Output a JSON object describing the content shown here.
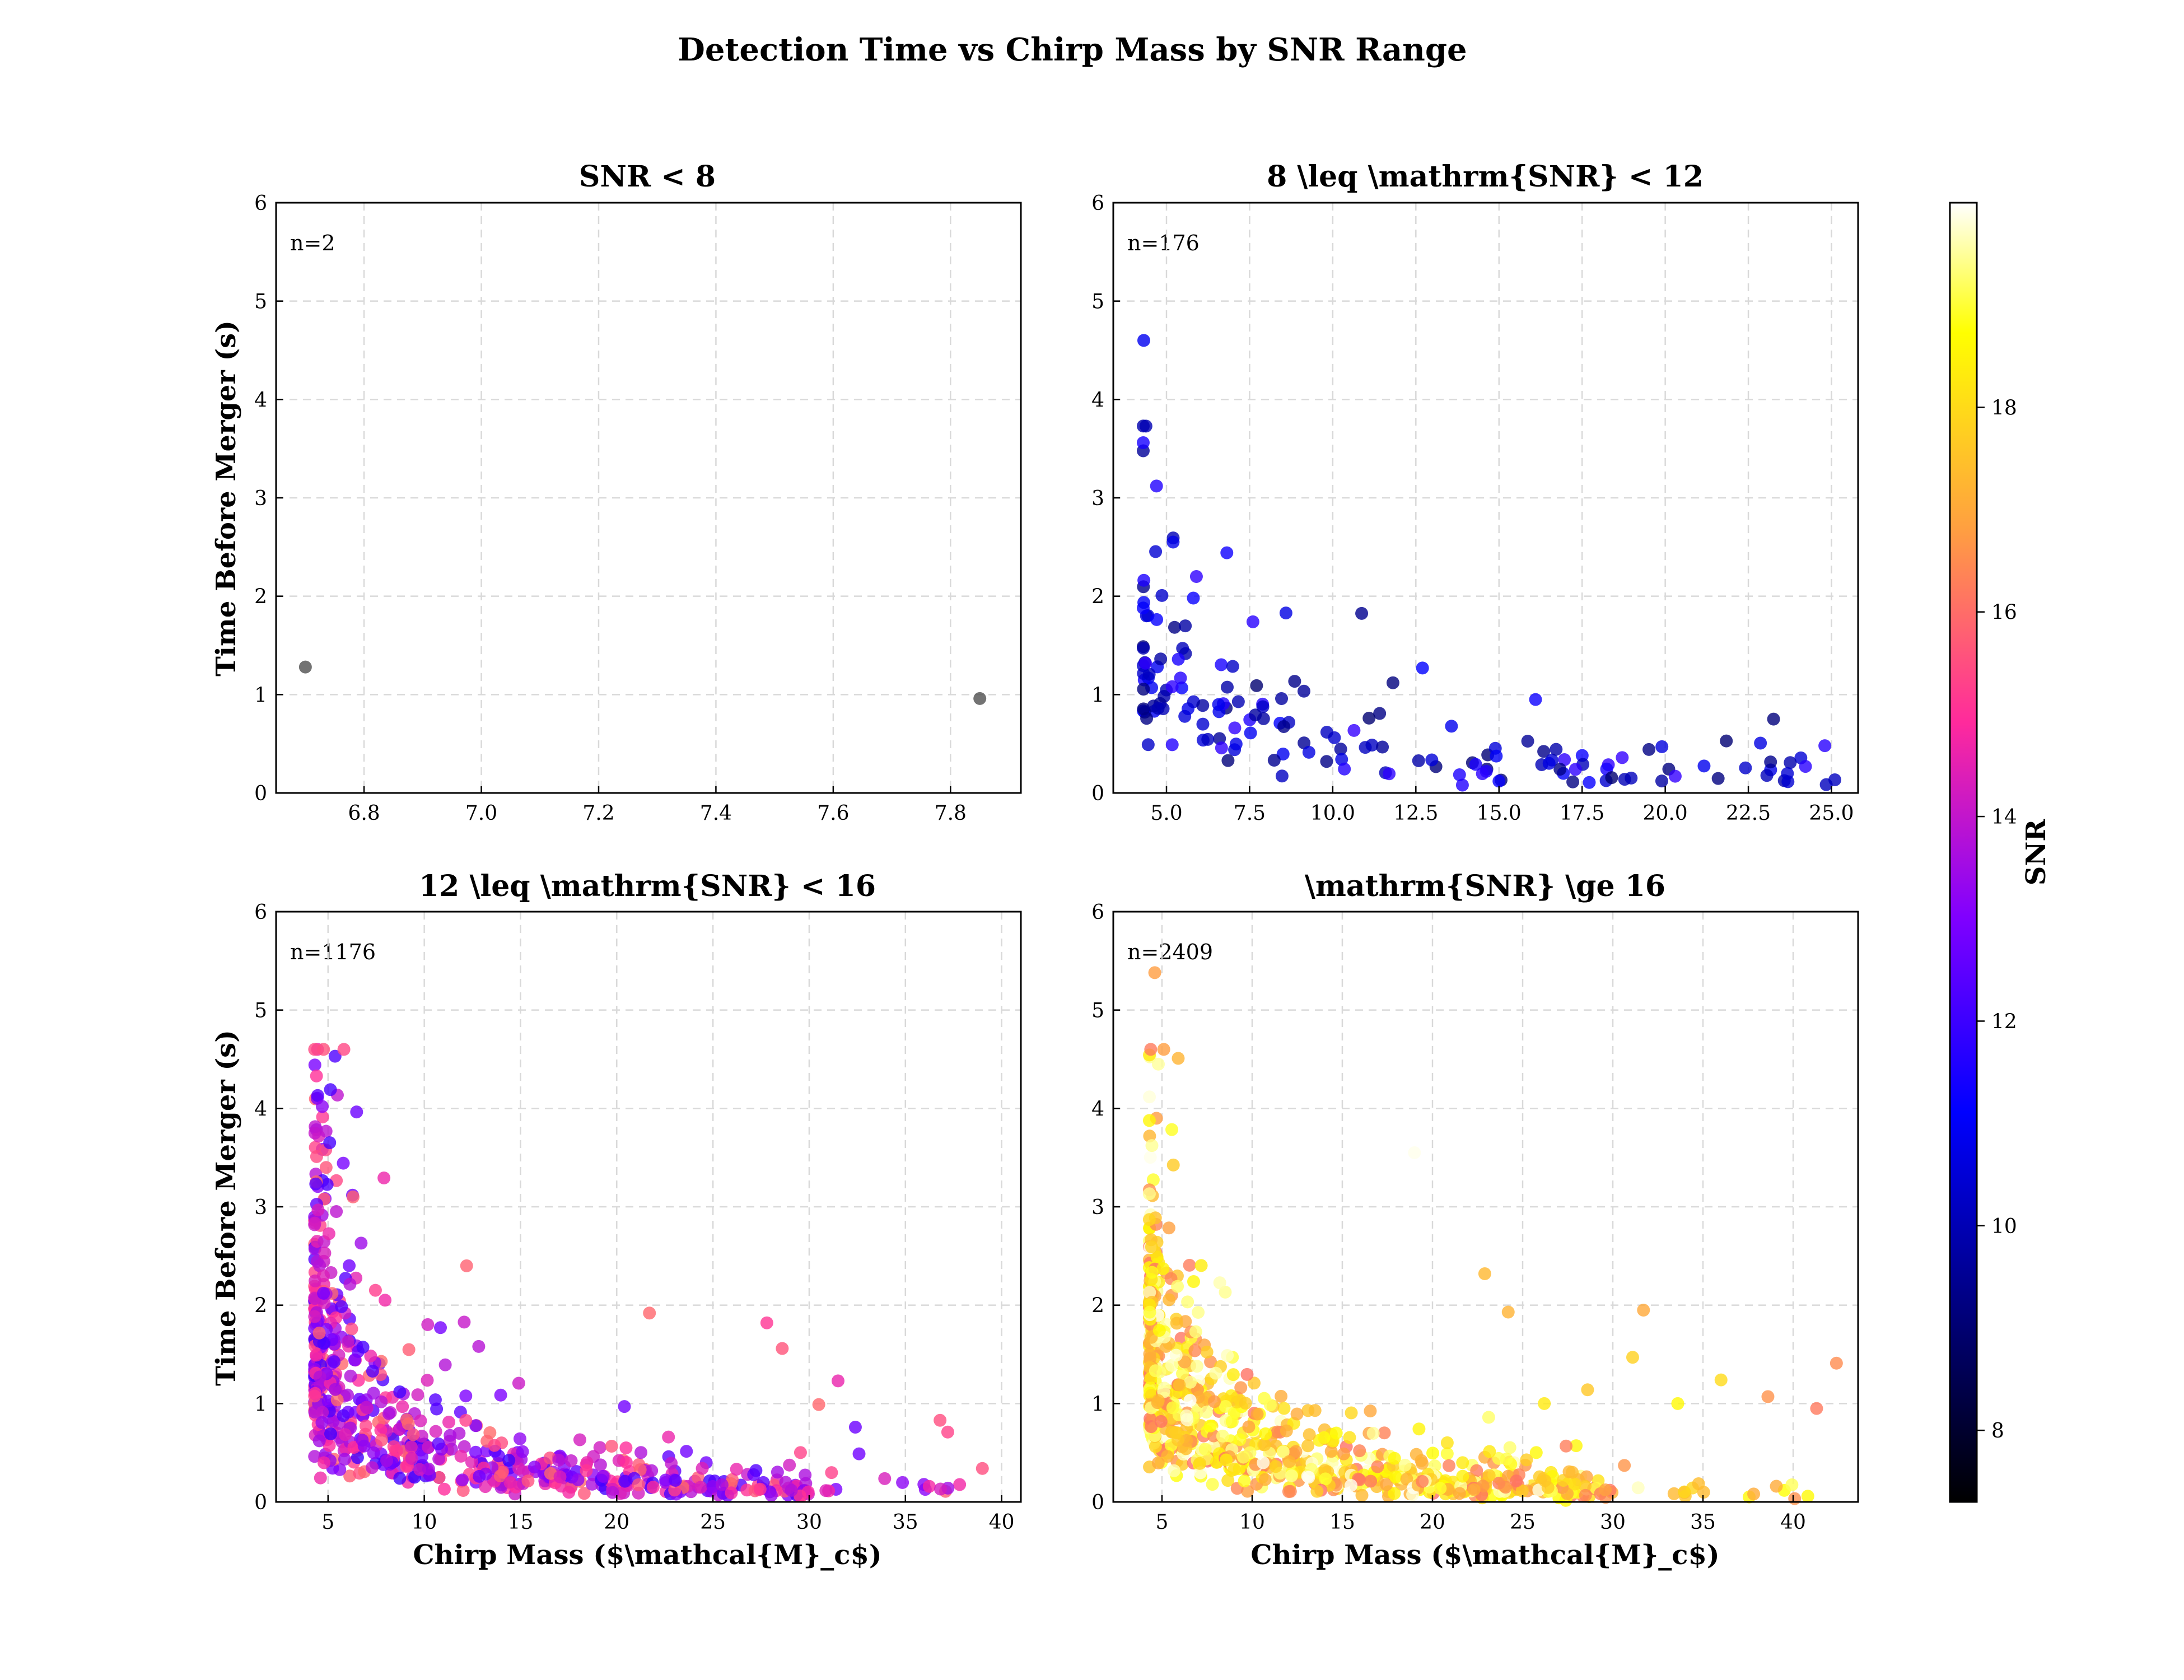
{
  "chart_data": {
    "type": "scatter",
    "title": "Detection Time vs Chirp Mass by SNR Range",
    "colorbar": {
      "label": "SNR",
      "range": [
        7.3,
        20.0
      ],
      "ticks": [
        8,
        10,
        12,
        14,
        16,
        18
      ]
    },
    "panels": [
      {
        "title": "SNR < 8",
        "annotation": "n=2",
        "ylabel": "Time Before Merger (s)",
        "xlabel": "",
        "xlim": [
          6.65,
          7.92
        ],
        "ylim": [
          0,
          6
        ],
        "xticks": [
          6.8,
          7.0,
          7.2,
          7.4,
          7.6,
          7.8
        ],
        "xtick_labels": [
          "6.8",
          "7.0",
          "7.2",
          "7.4",
          "7.6",
          "7.8"
        ],
        "yticks": [
          0,
          1,
          2,
          3,
          4,
          5,
          6
        ],
        "n": 2,
        "snr_range": [
          7.4,
          7.9
        ],
        "points": [
          {
            "x": 6.7,
            "y": 1.28,
            "snr": 7.6
          },
          {
            "x": 7.85,
            "y": 0.96,
            "snr": 7.7
          }
        ]
      },
      {
        "title": "8 \\leq \\mathrm{SNR} < 12",
        "annotation": "n=176",
        "ylabel": "",
        "xlabel": "",
        "xlim": [
          3.4,
          25.8
        ],
        "ylim": [
          0,
          6
        ],
        "xticks": [
          5,
          7.5,
          10,
          12.5,
          15,
          17.5,
          20,
          22.5,
          25
        ],
        "xtick_labels": [
          "5.0",
          "7.5",
          "10.0",
          "12.5",
          "15.0",
          "17.5",
          "20.0",
          "22.5",
          "25.0"
        ],
        "yticks": [
          0,
          1,
          2,
          3,
          4,
          5,
          6
        ],
        "n": 176,
        "snr_range": [
          9.0,
          11.9
        ],
        "points": [
          {
            "x": 4.7,
            "y": 3.12,
            "snr": 11.6
          },
          {
            "x": 5.2,
            "y": 2.55,
            "snr": 10.8
          },
          {
            "x": 5.9,
            "y": 2.2,
            "snr": 11.8
          },
          {
            "x": 7.6,
            "y": 1.74,
            "snr": 11.7
          },
          {
            "x": 12.7,
            "y": 1.27,
            "snr": 11.1
          },
          {
            "x": 16.1,
            "y": 0.95,
            "snr": 11.3
          },
          {
            "x": 19.9,
            "y": 0.47,
            "snr": 10.6
          },
          {
            "x": 20.3,
            "y": 0.17,
            "snr": 11.9
          },
          {
            "x": 24.8,
            "y": 0.48,
            "snr": 11.7
          },
          {
            "x": 17.3,
            "y": 0.24,
            "snr": 11.8
          },
          {
            "x": 14.3,
            "y": 0.29,
            "snr": 11.5
          },
          {
            "x": 15.0,
            "y": 0.12,
            "snr": 11.2
          },
          {
            "x": 13.9,
            "y": 0.08,
            "snr": 11.6
          }
        ]
      },
      {
        "title": "12 \\leq \\mathrm{SNR} < 16",
        "annotation": "n=1176",
        "ylabel": "Time Before Merger (s)",
        "xlabel": "Chirp Mass ($\\mathcal{M}_c$)",
        "xlim": [
          2.3,
          41.0
        ],
        "ylim": [
          0,
          6
        ],
        "xticks": [
          5,
          10,
          15,
          20,
          25,
          30,
          35,
          40
        ],
        "xtick_labels": [
          "5",
          "10",
          "15",
          "20",
          "25",
          "30",
          "35",
          "40"
        ],
        "yticks": [
          0,
          1,
          2,
          3,
          4,
          5,
          6
        ],
        "n": 1176,
        "snr_range": [
          12.0,
          15.99
        ],
        "points": [
          {
            "x": 4.4,
            "y": 4.33,
            "snr": 15.0
          },
          {
            "x": 4.7,
            "y": 4.02,
            "snr": 13.2
          },
          {
            "x": 4.9,
            "y": 3.4,
            "snr": 15.6
          },
          {
            "x": 6.3,
            "y": 3.1,
            "snr": 15.8
          },
          {
            "x": 21.7,
            "y": 1.92,
            "snr": 15.9
          },
          {
            "x": 27.8,
            "y": 1.82,
            "snr": 15.1
          },
          {
            "x": 28.6,
            "y": 1.56,
            "snr": 15.6
          },
          {
            "x": 31.5,
            "y": 1.23,
            "snr": 14.6
          },
          {
            "x": 30.5,
            "y": 0.99,
            "snr": 15.9
          },
          {
            "x": 32.4,
            "y": 0.76,
            "snr": 12.7
          },
          {
            "x": 36.8,
            "y": 0.83,
            "snr": 15.5
          },
          {
            "x": 37.2,
            "y": 0.71,
            "snr": 15.3
          },
          {
            "x": 39.0,
            "y": 0.34,
            "snr": 15.5
          },
          {
            "x": 12.2,
            "y": 2.4,
            "snr": 15.8
          },
          {
            "x": 20.4,
            "y": 0.97,
            "snr": 12.8
          }
        ]
      },
      {
        "title": "\\mathrm{SNR} \\ge 16",
        "annotation": "n=2409",
        "ylabel": "",
        "xlabel": "Chirp Mass ($\\mathcal{M}_c$)",
        "xlim": [
          2.3,
          43.6
        ],
        "ylim": [
          0,
          6
        ],
        "xticks": [
          5,
          10,
          15,
          20,
          25,
          30,
          35,
          40
        ],
        "xtick_labels": [
          "5",
          "10",
          "15",
          "20",
          "25",
          "30",
          "35",
          "40"
        ],
        "yticks": [
          0,
          1,
          2,
          3,
          4,
          5,
          6
        ],
        "n": 2409,
        "snr_range": [
          16.0,
          20.0
        ],
        "points": [
          {
            "x": 4.6,
            "y": 5.38,
            "snr": 16.8
          },
          {
            "x": 4.8,
            "y": 4.45,
            "snr": 19.5
          },
          {
            "x": 19.0,
            "y": 3.55,
            "snr": 19.9
          },
          {
            "x": 31.7,
            "y": 1.95,
            "snr": 17.0
          },
          {
            "x": 38.6,
            "y": 1.07,
            "snr": 16.6
          },
          {
            "x": 41.3,
            "y": 0.95,
            "snr": 16.2
          },
          {
            "x": 42.4,
            "y": 1.41,
            "snr": 16.5
          },
          {
            "x": 36.0,
            "y": 1.24,
            "snr": 18.0
          },
          {
            "x": 28.6,
            "y": 1.14,
            "snr": 17.6
          },
          {
            "x": 26.2,
            "y": 1.0,
            "snr": 18.3
          },
          {
            "x": 31.1,
            "y": 1.47,
            "snr": 17.8
          },
          {
            "x": 22.9,
            "y": 2.32,
            "snr": 17.3
          },
          {
            "x": 24.2,
            "y": 1.93,
            "snr": 17.2
          },
          {
            "x": 33.6,
            "y": 1.0,
            "snr": 18.6
          }
        ]
      }
    ]
  }
}
